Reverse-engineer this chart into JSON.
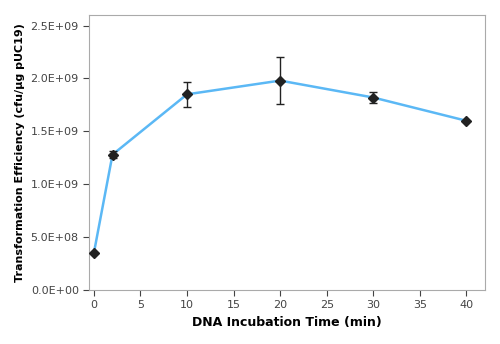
{
  "x": [
    0,
    2,
    10,
    20,
    30,
    40
  ],
  "y": [
    350000000.0,
    1280000000.0,
    1850000000.0,
    1980000000.0,
    1820000000.0,
    1600000000.0
  ],
  "yerr": [
    0,
    30000000.0,
    120000000.0,
    220000000.0,
    50000000.0,
    0
  ],
  "line_color": "#5bb8f5",
  "marker_color": "#222222",
  "marker_style": "D",
  "marker_size": 5,
  "line_width": 1.8,
  "xlabel": "DNA Incubation Time (min)",
  "ylabel": "Transformation Efficiency (cfu/μg pUC19)",
  "xlim": [
    -0.5,
    42
  ],
  "ylim": [
    0,
    2600000000.0
  ],
  "xticks": [
    0,
    5,
    10,
    15,
    20,
    25,
    30,
    35,
    40
  ],
  "yticks": [
    0,
    500000000.0,
    1000000000.0,
    1500000000.0,
    2000000000.0,
    2500000000.0
  ],
  "ytick_labels": [
    "0.0E+00",
    "5.0E+08",
    "1.0E+09",
    "1.5E+09",
    "2.0E+09",
    "2.5E+09"
  ],
  "background_color": "#ffffff",
  "error_cap_size": 3,
  "error_color": "#222222",
  "spine_color": "#aaaaaa"
}
